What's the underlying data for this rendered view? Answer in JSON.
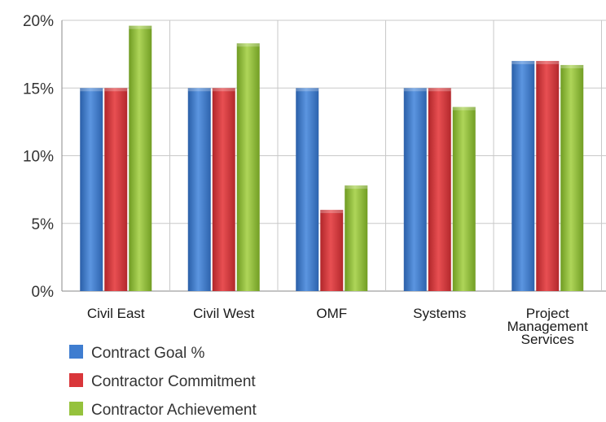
{
  "chart_data": {
    "type": "bar",
    "categories": [
      [
        "Civil East"
      ],
      [
        "Civil West"
      ],
      [
        "OMF"
      ],
      [
        "Systems"
      ],
      [
        "Project",
        "Management",
        "Services"
      ]
    ],
    "series": [
      {
        "name": "Contract Goal %",
        "color": "#3f7dd0",
        "values": [
          15,
          15,
          15,
          15,
          17
        ]
      },
      {
        "name": "Contractor Commitment",
        "color": "#d9363a",
        "values": [
          15,
          15,
          6,
          15,
          17
        ]
      },
      {
        "name": "Contractor Achievement",
        "color": "#95c23c",
        "values": [
          19.6,
          18.3,
          7.8,
          13.6,
          16.7
        ]
      }
    ],
    "ylim": [
      0,
      20
    ],
    "yticks": [
      {
        "value": 0,
        "label": "0%"
      },
      {
        "value": 5,
        "label": "5%"
      },
      {
        "value": 10,
        "label": "10%"
      },
      {
        "value": 15,
        "label": "15%"
      },
      {
        "value": 20,
        "label": "20%"
      }
    ],
    "grid": true,
    "legend": "bottom-left",
    "title": "",
    "xlabel": "",
    "ylabel": ""
  }
}
